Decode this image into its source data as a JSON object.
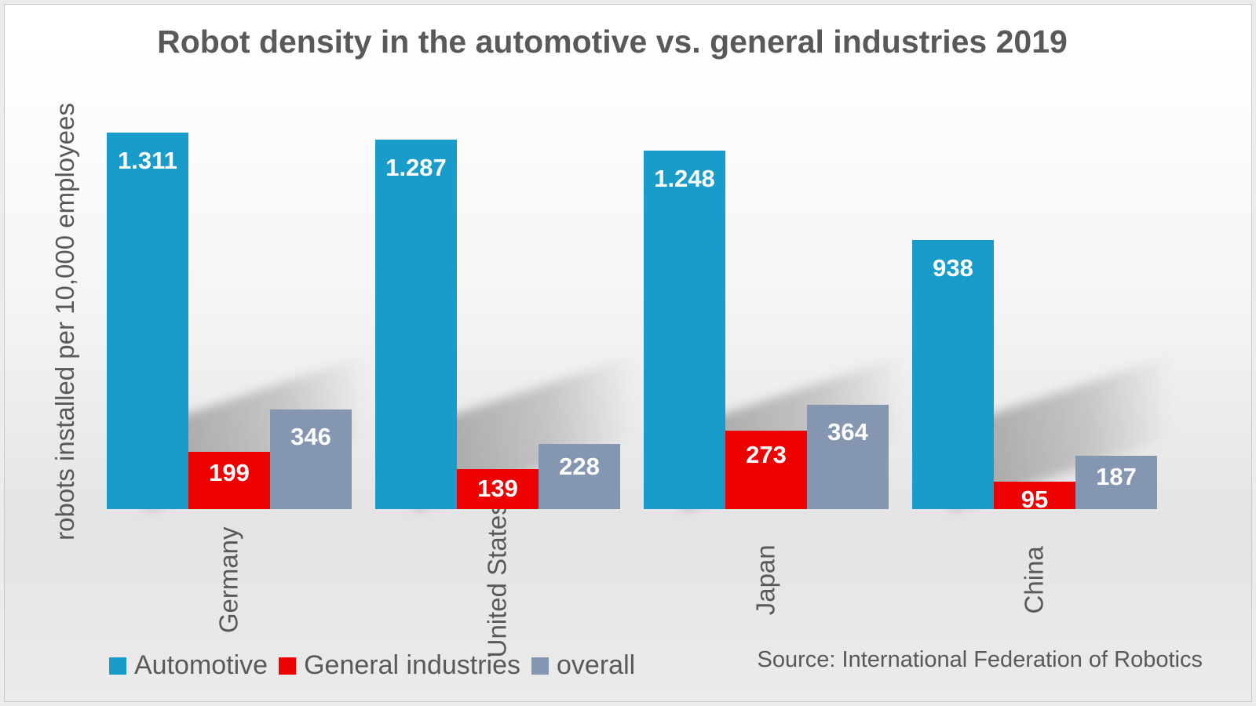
{
  "title": "Robot density in the automotive vs. general industries 2019",
  "y_axis_label": "robots installed per 10,000 employees",
  "source": "Source: International Federation of Robotics",
  "legend": [
    {
      "label": "Automotive",
      "color": "#1a9cca"
    },
    {
      "label": "General industries",
      "color": "#ec0000"
    },
    {
      "label": "overall",
      "color": "#8496b0"
    }
  ],
  "chart_data": {
    "type": "bar",
    "title": "Robot density in the automotive vs. general industries 2019",
    "xlabel": "",
    "ylabel": "robots installed per 10,000 employees",
    "categories": [
      "Germany",
      "United States",
      "Japan",
      "China"
    ],
    "series": [
      {
        "name": "Automotive",
        "color": "#1a9cca",
        "values": [
          1311,
          1287,
          1248,
          938
        ],
        "labels": [
          "1.311",
          "1.287",
          "1.248",
          "938"
        ]
      },
      {
        "name": "General industries",
        "color": "#ec0000",
        "values": [
          199,
          139,
          273,
          95
        ],
        "labels": [
          "199",
          "139",
          "273",
          "95"
        ]
      },
      {
        "name": "overall",
        "color": "#8496b0",
        "values": [
          346,
          228,
          364,
          187
        ],
        "labels": [
          "346",
          "228",
          "364",
          "187"
        ]
      }
    ],
    "ylim": [
      0,
      1311
    ],
    "grid": false,
    "legend_position": "bottom-left",
    "value_labels_inside_bars": true,
    "thousands_separator": "."
  }
}
